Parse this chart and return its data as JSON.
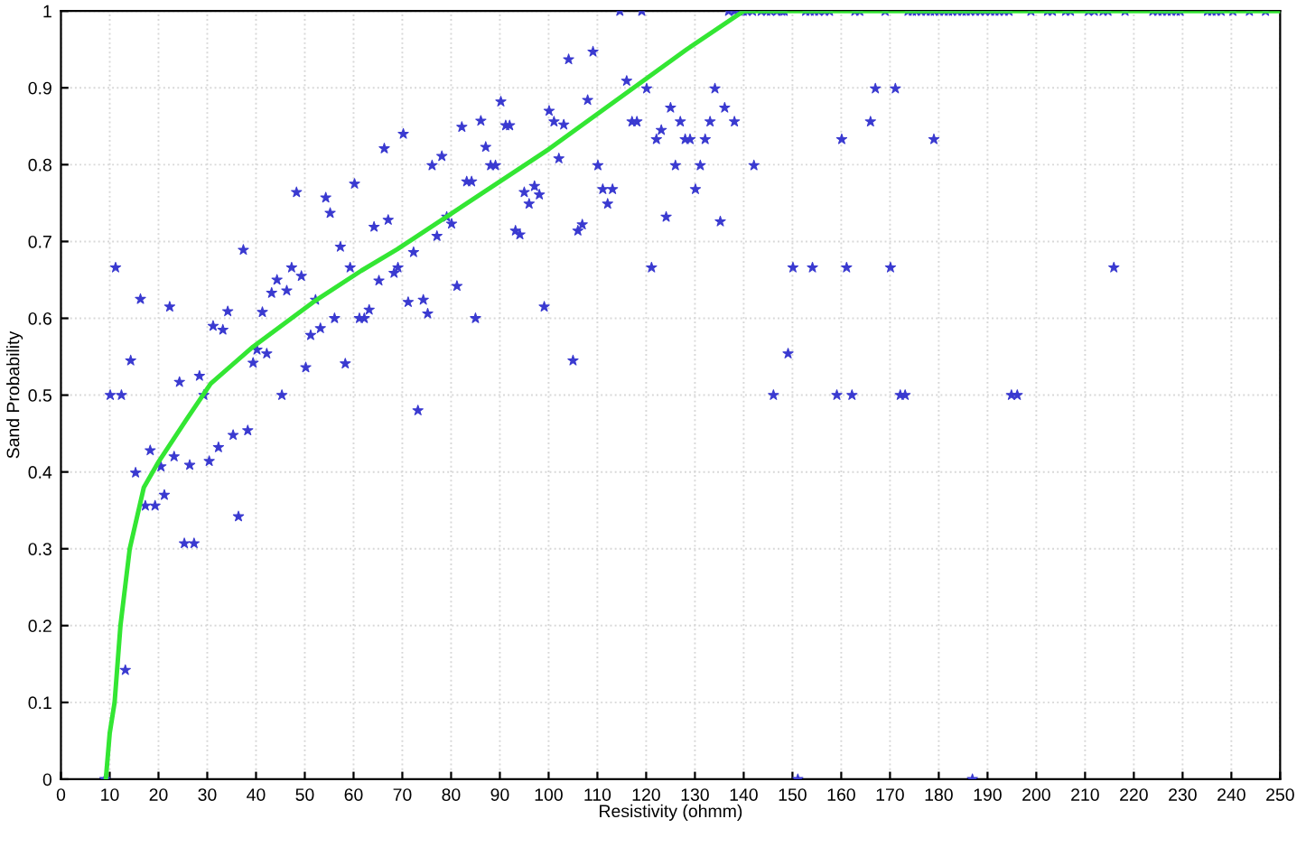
{
  "chart_data": {
    "type": "scatter",
    "xlabel": "Resistivity (ohmm)",
    "ylabel": "Sand Probability",
    "xlim": [
      0,
      250
    ],
    "ylim": [
      0,
      1
    ],
    "xticks": [
      0,
      10,
      20,
      30,
      40,
      50,
      60,
      70,
      80,
      90,
      100,
      110,
      120,
      130,
      140,
      150,
      160,
      170,
      180,
      190,
      200,
      210,
      220,
      230,
      240,
      250
    ],
    "yticks": [
      0,
      0.1,
      0.2,
      0.3,
      0.4,
      0.5,
      0.6,
      0.7,
      0.8,
      0.9,
      1
    ],
    "grid": true,
    "series": [
      {
        "color": "#3a3ad0",
        "marker": "star",
        "x": [
          9.0,
          11.2,
          10.1,
          12.4,
          13.2,
          14.3,
          15.3,
          16.3,
          17.3,
          19.3,
          18.3,
          20.5,
          21.2,
          22.3,
          23.2,
          24.3,
          25.3,
          27.3,
          26.4,
          28.4,
          29.3,
          30.4,
          31.2,
          33.2,
          32.3,
          34.2,
          35.3,
          36.4,
          37.4,
          38.3,
          39.4,
          40.2,
          41.3,
          42.2,
          43.2,
          44.3,
          45.3,
          46.3,
          47.3,
          48.3,
          49.3,
          50.2,
          51.2,
          52.2,
          53.2,
          54.3,
          55.2,
          56.1,
          57.3,
          58.3,
          59.3,
          60.2,
          61.2,
          62.2,
          63.2,
          64.2,
          65.2,
          66.3,
          67.1,
          68.3,
          69.1,
          70.2,
          71.2,
          72.3,
          73.2,
          74.3,
          75.2,
          76.1,
          77.1,
          78.1,
          79.1,
          80.1,
          81.2,
          82.2,
          83.2,
          84.2,
          85.0,
          86.1,
          87.1,
          88.1,
          89.1,
          90.2,
          91.2,
          92.0,
          93.2,
          94.1,
          95.0,
          96.0,
          97.1,
          98.1,
          99.1,
          100.1,
          101.1,
          102.1,
          103.1,
          104.1,
          105.0,
          106.0,
          106.9,
          108.0,
          109.1,
          110.1,
          111.1,
          113.1,
          112.1,
          114.6,
          119.1,
          116.0,
          117.1,
          118.1,
          120.1,
          121.1,
          122.1,
          123.1,
          124.1,
          125.0,
          126.0,
          127.0,
          128.0,
          129.0,
          130.1,
          131.1,
          132.1,
          133.1,
          134.1,
          135.2,
          136.1,
          138.1,
          142.1,
          146.1,
          149.1,
          150.1,
          151.1,
          154.1,
          159.1,
          160.1,
          161.1,
          162.2,
          166.0,
          167.0,
          170.1,
          171.1,
          172.1,
          173.1,
          179.0,
          186.9,
          194.9,
          196.1,
          215.9,
          136.9,
          138.1,
          139.1,
          139.9,
          140.7,
          141.8,
          143.6,
          144.7,
          145.5,
          146.8,
          147.8,
          148.3,
          152.7,
          153.6,
          154.5,
          155.4,
          156.6,
          157.6,
          162.8,
          163.8,
          169.0,
          173.7,
          174.6,
          175.4,
          176.4,
          177.4,
          178.3,
          179.1,
          180.1,
          181.1,
          182.0,
          182.8,
          183.8,
          184.8,
          185.6,
          186.5,
          187.5,
          188.5,
          189.5,
          190.6,
          191.5,
          192.4,
          193.4,
          194.4,
          198.9,
          202.3,
          203.3,
          206.0,
          207.0,
          210.7,
          211.9,
          213.7,
          214.7,
          218.2,
          223.9,
          224.9,
          225.8,
          226.8,
          227.7,
          228.7,
          229.5,
          235.1,
          236.0,
          236.9,
          237.9,
          240.3,
          243.7,
          247.0
        ],
        "values": [
          0,
          0.666,
          0.5,
          0.5,
          0.142,
          0.545,
          0.399,
          0.625,
          0.356,
          0.356,
          0.428,
          0.407,
          0.37,
          0.615,
          0.42,
          0.517,
          0.307,
          0.307,
          0.409,
          0.525,
          0.5,
          0.414,
          0.59,
          0.585,
          0.432,
          0.609,
          0.448,
          0.342,
          0.689,
          0.454,
          0.542,
          0.559,
          0.608,
          0.554,
          0.633,
          0.65,
          0.5,
          0.636,
          0.666,
          0.764,
          0.655,
          0.536,
          0.578,
          0.624,
          0.587,
          0.757,
          0.737,
          0.6,
          0.693,
          0.541,
          0.666,
          0.775,
          0.6,
          0.6,
          0.611,
          0.719,
          0.649,
          0.821,
          0.728,
          0.659,
          0.666,
          0.84,
          0.621,
          0.686,
          0.48,
          0.624,
          0.606,
          0.799,
          0.707,
          0.811,
          0.732,
          0.723,
          0.642,
          0.849,
          0.778,
          0.778,
          0.6,
          0.857,
          0.823,
          0.799,
          0.799,
          0.882,
          0.851,
          0.851,
          0.714,
          0.709,
          0.764,
          0.749,
          0.772,
          0.761,
          0.615,
          0.87,
          0.856,
          0.808,
          0.852,
          0.937,
          0.545,
          0.714,
          0.722,
          0.884,
          0.947,
          0.799,
          0.768,
          0.768,
          0.749,
          1,
          1,
          0.909,
          0.856,
          0.856,
          0.899,
          0.666,
          0.833,
          0.845,
          0.732,
          0.874,
          0.799,
          0.856,
          0.833,
          0.833,
          0.768,
          0.799,
          0.833,
          0.856,
          0.899,
          0.726,
          0.874,
          0.856,
          0.799,
          0.5,
          0.554,
          0.666,
          0,
          0.666,
          0.5,
          0.833,
          0.666,
          0.5,
          0.856,
          0.899,
          0.666,
          0.899,
          0.5,
          0.5,
          0.833,
          0,
          0.5,
          0.5,
          0.666,
          1,
          1,
          1,
          1,
          1,
          1,
          1,
          1,
          1,
          1,
          1,
          1,
          1,
          1,
          1,
          1,
          1,
          1,
          1,
          1,
          1,
          1,
          1,
          1,
          1,
          1,
          1,
          1,
          1,
          1,
          1,
          1,
          1,
          1,
          1,
          1,
          1,
          1,
          1,
          1,
          1,
          1,
          1,
          1,
          1,
          1,
          1,
          1,
          1,
          1,
          1,
          1,
          1,
          1,
          1,
          1,
          1,
          1,
          1,
          1,
          1,
          1,
          1,
          1,
          1,
          1,
          1,
          1
        ]
      },
      {
        "type": "line",
        "color": "#33e633",
        "marker": "none",
        "line_style": "solid",
        "x": [
          9.2,
          10,
          11,
          12.2,
          14.1,
          17,
          20,
          25.7,
          30.7,
          39.4,
          51.7,
          61.6,
          69,
          100,
          128.3,
          140,
          250
        ],
        "values": [
          0,
          0.06,
          0.1,
          0.2,
          0.3,
          0.38,
          0.413,
          0.468,
          0.515,
          0.563,
          0.621,
          0.662,
          0.69,
          0.82,
          0.95,
          1,
          1
        ]
      }
    ]
  }
}
